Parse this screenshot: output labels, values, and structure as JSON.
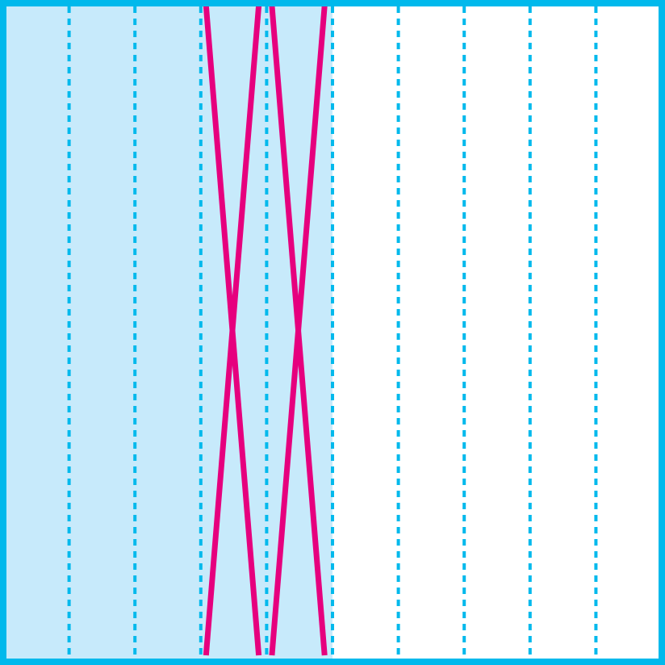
{
  "diagram": {
    "divisions": 10,
    "shaded_columns": 5,
    "colors": {
      "frame": "#00b9ec",
      "shading": "#c7eafb",
      "fold_lines": "#00b9ec",
      "crease": "#e6007e",
      "background": "#ffffff"
    },
    "crease_lines": [
      {
        "from_division": 3.08,
        "to_division": 3.88
      },
      {
        "from_division": 3.88,
        "to_division": 3.08
      },
      {
        "from_division": 4.08,
        "to_division": 4.88
      },
      {
        "from_division": 4.88,
        "to_division": 4.08
      }
    ]
  }
}
